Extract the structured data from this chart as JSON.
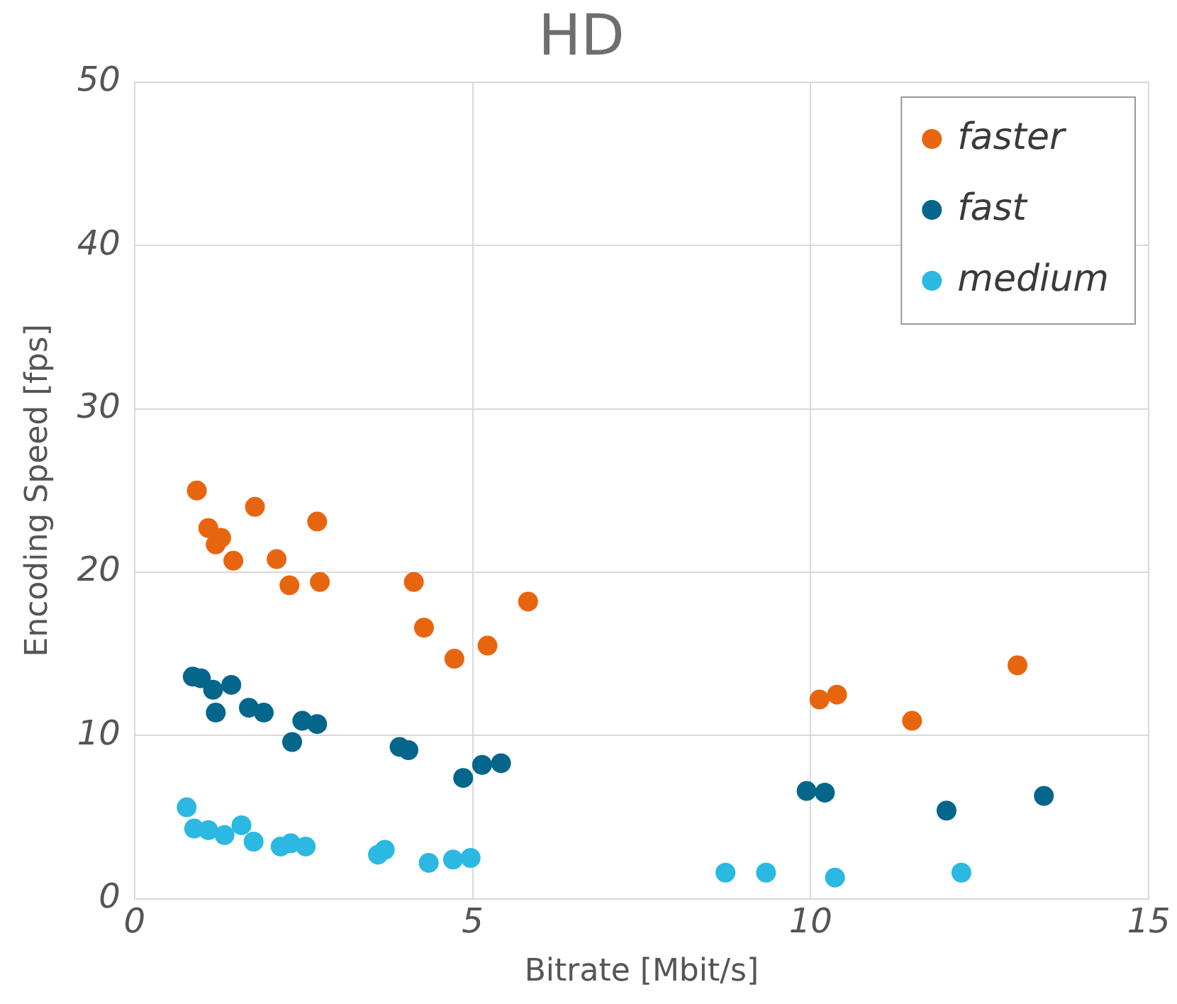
{
  "chart_data": {
    "type": "scatter",
    "title": "HD",
    "xlabel": "Bitrate [Mbit/s]",
    "ylabel": "Encoding Speed [fps]",
    "xlim": [
      0,
      15
    ],
    "xticks": [
      0,
      5,
      10,
      15
    ],
    "ylim": [
      0,
      50
    ],
    "yticks": [
      0,
      10,
      20,
      30,
      40,
      50
    ],
    "grid": true,
    "legend": "top right",
    "marker": "circle",
    "series": [
      {
        "name": "faster",
        "color": "#e8650f",
        "x": [
          0.92,
          1.09,
          1.2,
          1.28,
          1.46,
          1.78,
          2.1,
          2.29,
          2.7,
          2.74,
          4.13,
          4.28,
          4.73,
          5.22,
          5.82,
          10.13,
          10.39,
          11.5,
          13.06
        ],
        "values": [
          25.0,
          22.7,
          21.7,
          22.1,
          20.7,
          24.0,
          20.8,
          19.2,
          23.1,
          19.4,
          19.4,
          16.6,
          14.7,
          15.5,
          18.2,
          12.2,
          12.5,
          10.9,
          14.3
        ]
      },
      {
        "name": "fast",
        "color": "#03668a",
        "x": [
          0.86,
          0.98,
          1.16,
          1.2,
          1.43,
          1.69,
          1.91,
          2.33,
          2.48,
          2.7,
          3.92,
          4.05,
          4.86,
          5.14,
          5.42,
          9.94,
          10.21,
          12.01,
          13.45
        ],
        "values": [
          13.6,
          13.5,
          12.8,
          11.4,
          13.1,
          11.7,
          11.4,
          9.6,
          10.9,
          10.7,
          9.3,
          9.1,
          7.4,
          8.2,
          8.3,
          6.6,
          6.5,
          5.4,
          6.3
        ]
      },
      {
        "name": "medium",
        "color": "#2bb8e2",
        "x": [
          0.77,
          0.88,
          1.09,
          1.33,
          1.58,
          1.76,
          2.16,
          2.31,
          2.53,
          3.6,
          3.7,
          4.35,
          4.71,
          4.97,
          8.74,
          9.34,
          10.36,
          12.23
        ],
        "values": [
          5.6,
          4.3,
          4.2,
          3.9,
          4.5,
          3.5,
          3.2,
          3.4,
          3.2,
          2.7,
          3.0,
          2.2,
          2.4,
          2.5,
          1.6,
          1.6,
          1.3,
          1.6
        ]
      }
    ]
  }
}
